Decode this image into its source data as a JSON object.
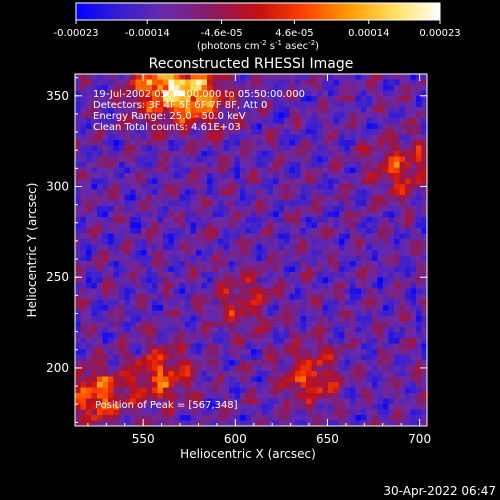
{
  "chart_data": {
    "type": "heatmap",
    "title": "Reconstructed RHESSI Image",
    "xlabel": "Heliocentric X (arcsec)",
    "ylabel": "Heliocentric Y (arcsec)",
    "xlim": [
      513,
      704
    ],
    "ylim": [
      168,
      362
    ],
    "x_ticks": [
      550,
      600,
      650,
      700
    ],
    "y_ticks": [
      200,
      250,
      300,
      350
    ],
    "colorbar": {
      "label_main": "(photons cm",
      "label_sup1": "-2",
      "label_mid": " s",
      "label_sup2": "-1",
      "label_tail": " asec",
      "label_sup3": "-2",
      "label_end": ")",
      "range": [
        -0.00023,
        0.00023
      ],
      "ticks": [
        "-0.00023",
        "-0.00014",
        "-4.6e-05",
        "4.6e-05",
        "0.00014",
        "0.00023"
      ],
      "colors": [
        "#0000ff",
        "#3a1fd0",
        "#6a2aa8",
        "#8a1a60",
        "#c41010",
        "#ff4000",
        "#ff9a00",
        "#ffe060",
        "#ffffff"
      ]
    },
    "annotations": [
      "19-Jul-2002 05:44:00.000 to 05:50:00.000",
      "Detectors: 3F 4F 5F 6F 7F 8F, Att 0",
      "Energy Range: 25.0 - 50.0 keV",
      "Clean    Total counts: 4.61E+03"
    ],
    "peak_label": "Position of Peak = [567,348]",
    "peak": [
      567,
      348
    ],
    "bright_regions": [
      {
        "x": 560,
        "y": 355,
        "value": 0.00023
      },
      {
        "x": 580,
        "y": 350,
        "value": 0.0002
      },
      {
        "x": 525,
        "y": 185,
        "value": 0.00018
      },
      {
        "x": 560,
        "y": 195,
        "value": 0.00016
      },
      {
        "x": 640,
        "y": 195,
        "value": 0.00014
      },
      {
        "x": 690,
        "y": 310,
        "value": 0.00014
      },
      {
        "x": 603,
        "y": 237,
        "value": 0.0001
      }
    ]
  },
  "footer_timestamp": "30-Apr-2022 06:47"
}
